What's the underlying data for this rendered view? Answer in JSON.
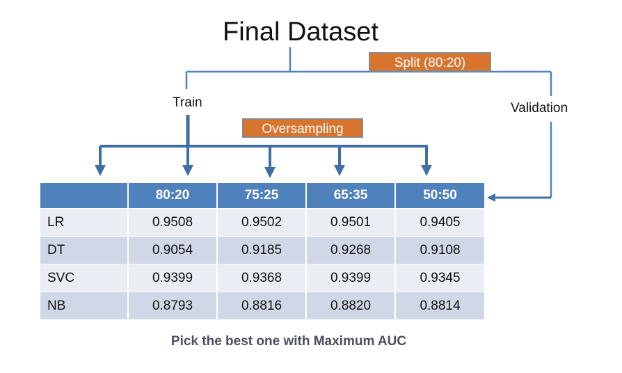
{
  "title": "Final Dataset",
  "split_tag": "Split (80:20)",
  "train_label": "Train",
  "validation_label": "Validation",
  "oversampling_tag": "Oversampling",
  "table": {
    "corner": "",
    "columns": [
      "80:20",
      "75:25",
      "65:35",
      "50:50"
    ],
    "rows": [
      {
        "model": "LR",
        "values": [
          "0.9508",
          "0.9502",
          "0.9501",
          "0.9405"
        ]
      },
      {
        "model": "DT",
        "values": [
          "0.9054",
          "0.9185",
          "0.9268",
          "0.9108"
        ]
      },
      {
        "model": "SVC",
        "values": [
          "0.9399",
          "0.9368",
          "0.9399",
          "0.9345"
        ]
      },
      {
        "model": "NB",
        "values": [
          "0.8793",
          "0.8816",
          "0.8820",
          "0.8814"
        ]
      }
    ]
  },
  "footer": "Pick the best one with Maximum AUC",
  "colors": {
    "line": "#4f81bd",
    "arrow": "#3f6ea8",
    "tag": "#d9742f",
    "header": "#4f81bd",
    "row_light": "#e9edf4",
    "row_dark": "#d0d8e8",
    "footer_text": "#4a4f5c"
  }
}
